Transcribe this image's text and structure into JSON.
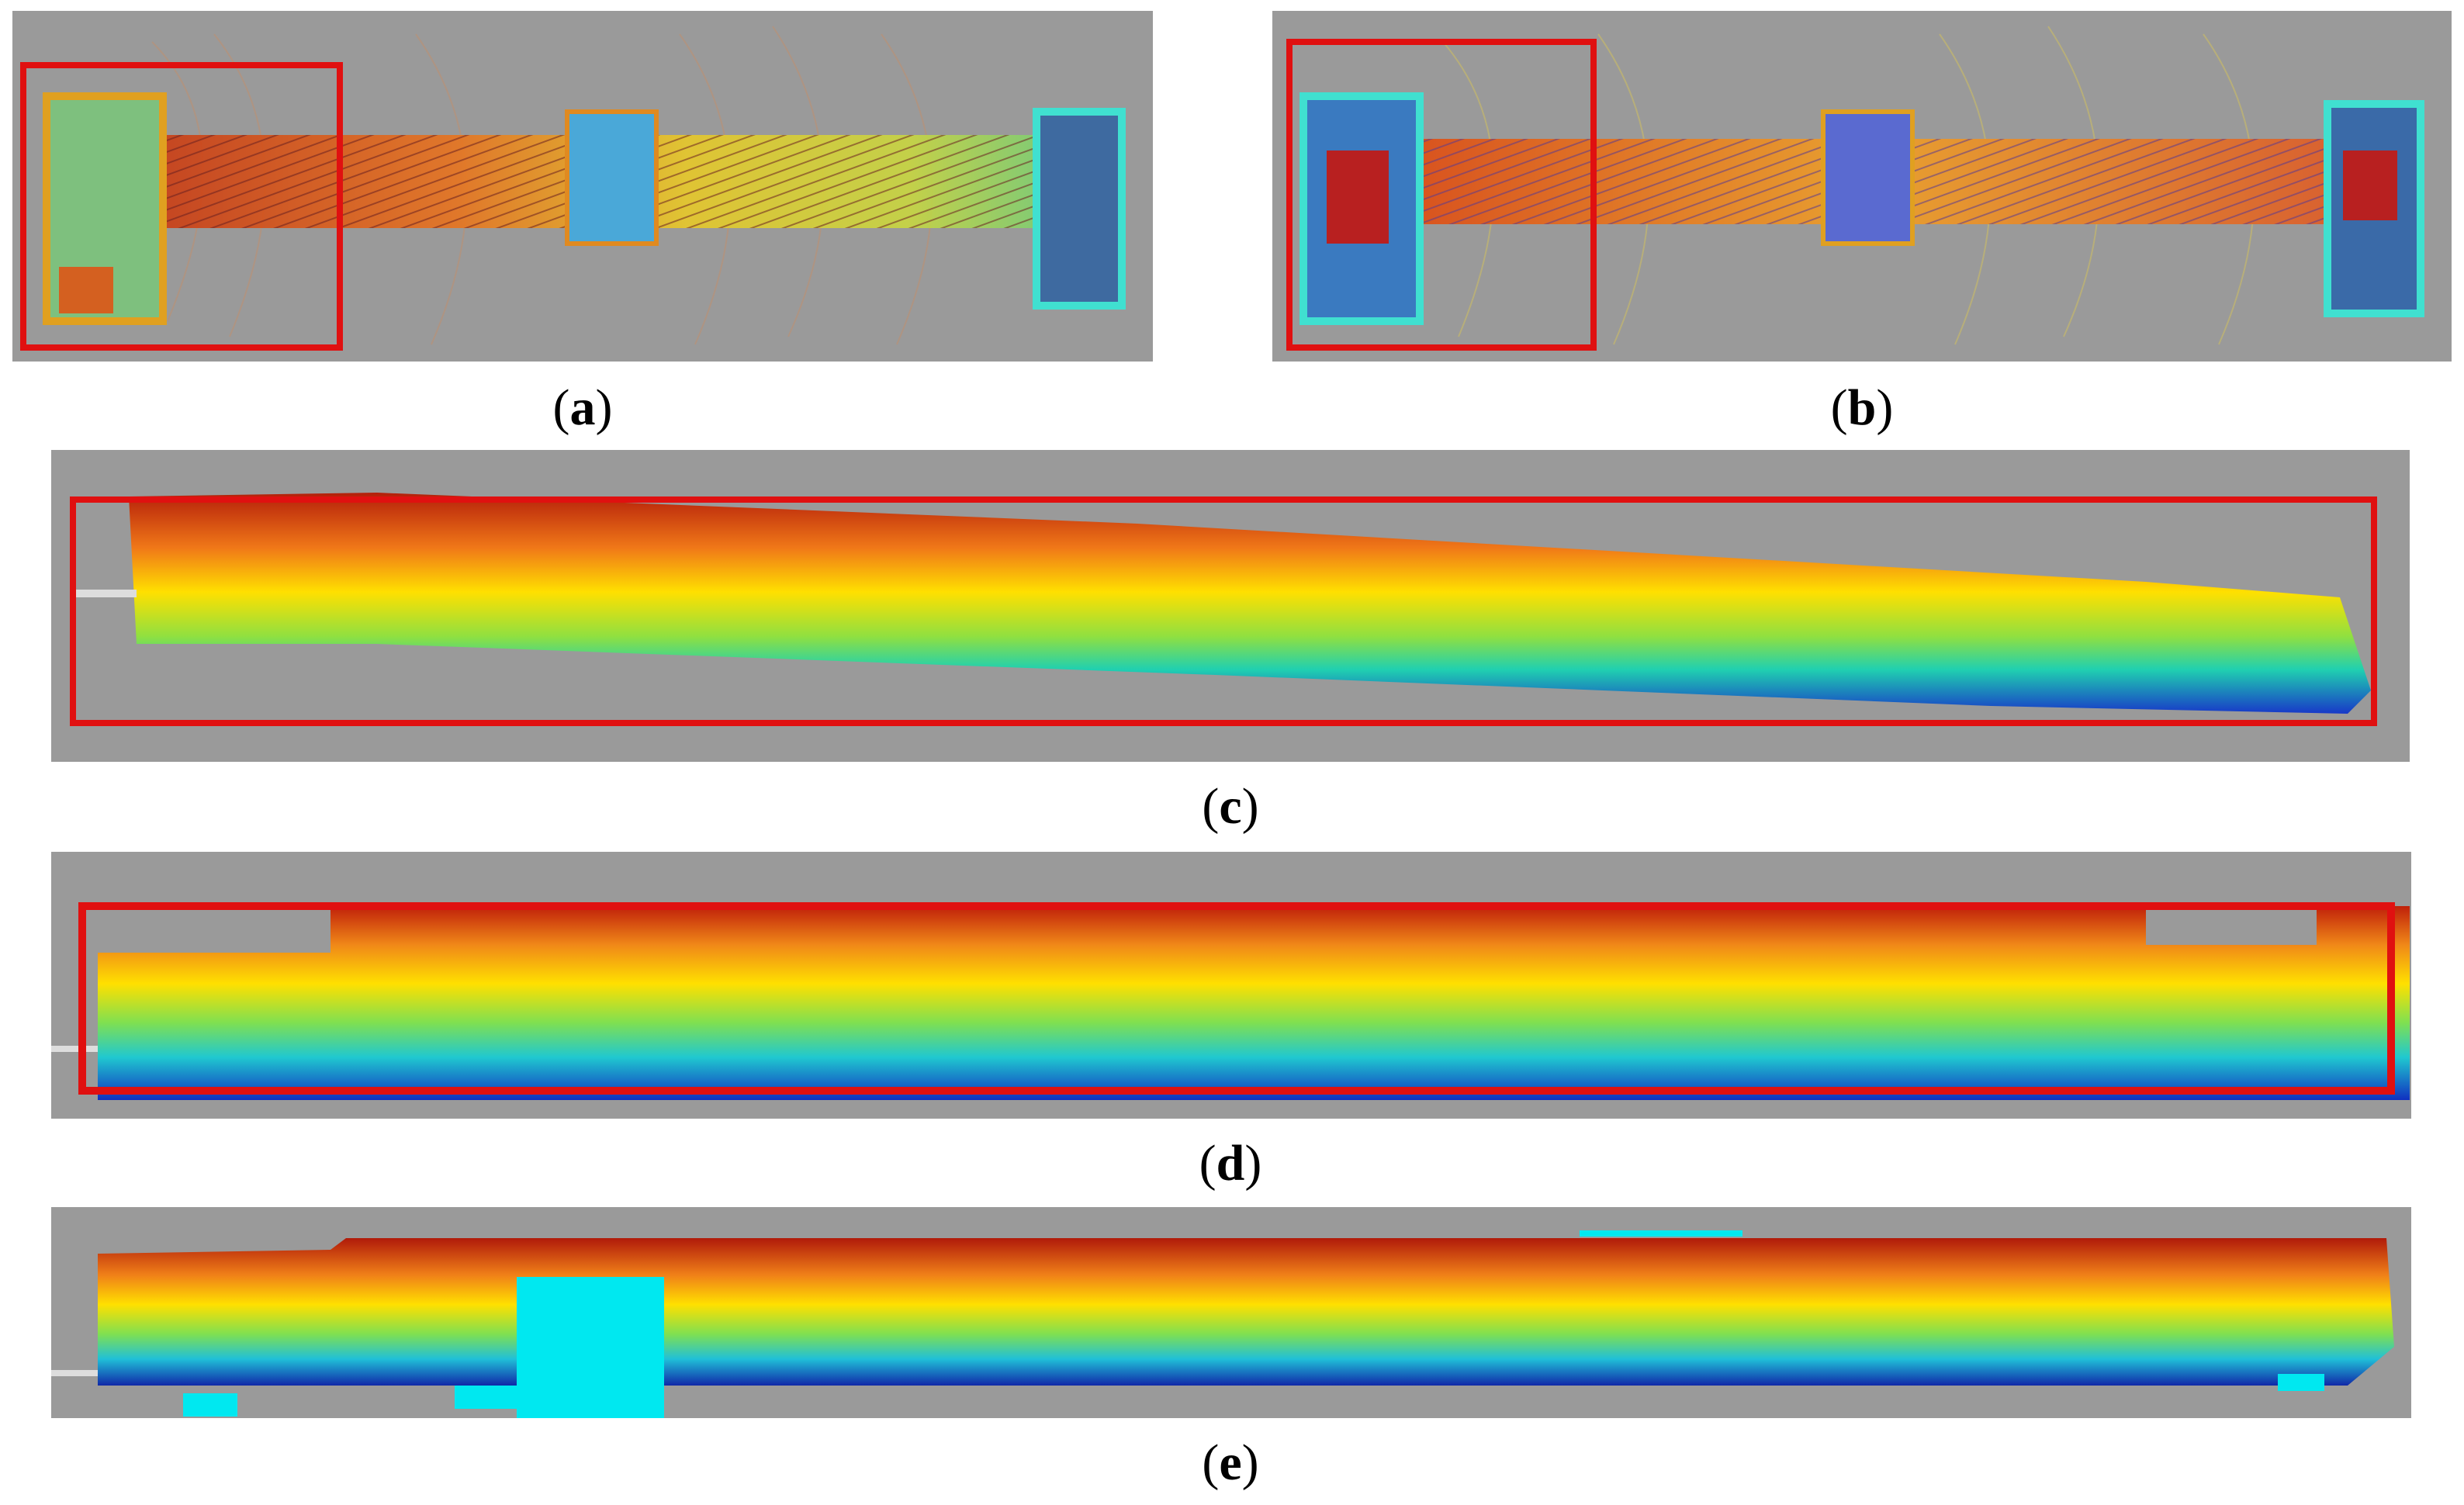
{
  "figure": {
    "panels": [
      {
        "id": "a",
        "letter": "a",
        "view": "top-view point cloud map with highlighted region"
      },
      {
        "id": "b",
        "letter": "b",
        "view": "top-view point cloud map with highlighted region"
      },
      {
        "id": "c",
        "letter": "c",
        "view": "side-view point cloud with bounding box"
      },
      {
        "id": "d",
        "letter": "d",
        "view": "side-view point cloud with bounding box"
      },
      {
        "id": "e",
        "letter": "e",
        "view": "side-view point cloud"
      }
    ]
  },
  "colors": {
    "background": "#9a9a9a",
    "highlight": "#e01010",
    "gradient_top": "#c0200a",
    "gradient_mid": "#ffe000",
    "gradient_low": "#20e0a0",
    "gradient_bottom": "#1030c0",
    "marker": "#00e8f0"
  }
}
